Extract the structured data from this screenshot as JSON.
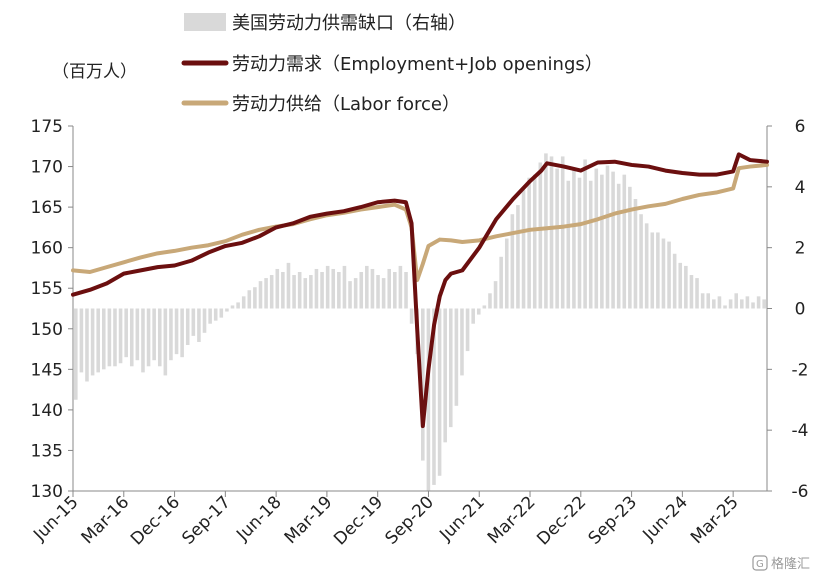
{
  "chart_data": {
    "type": "line",
    "unit_label": "（百万人）",
    "x_tick_labels": [
      "Jun-15",
      "Mar-16",
      "Dec-16",
      "Sep-17",
      "Jun-18",
      "Mar-19",
      "Dec-19",
      "Sep-20",
      "Jun-21",
      "Mar-22",
      "Dec-22",
      "Sep-23",
      "Jun-24",
      "Mar-25"
    ],
    "y_left": {
      "min": 130,
      "max": 175,
      "ticks": [
        "130",
        "135",
        "140",
        "145",
        "150",
        "155",
        "160",
        "165",
        "170",
        "175"
      ]
    },
    "y_right": {
      "min": -6,
      "max": 6,
      "ticks": [
        "-6",
        "-4",
        "-2",
        "0",
        "2",
        "4",
        "6"
      ]
    },
    "x_range": [
      0,
      123
    ],
    "legend": [
      {
        "name": "美国劳动力供需缺口（右轴）",
        "kind": "bar",
        "color": "#d9d9d9"
      },
      {
        "name": "劳动力需求（Employment+Job openings）",
        "kind": "line",
        "color": "#6b0f0f"
      },
      {
        "name": "劳动力供给（Labor force）",
        "kind": "line",
        "color": "#c8a878"
      }
    ],
    "series": [
      {
        "name": "劳动力需求（Employment+Job openings）",
        "axis": "left",
        "points": [
          [
            0,
            154.2
          ],
          [
            3,
            154.8
          ],
          [
            6,
            155.6
          ],
          [
            9,
            156.8
          ],
          [
            12,
            157.2
          ],
          [
            15,
            157.6
          ],
          [
            18,
            157.8
          ],
          [
            21,
            158.4
          ],
          [
            24,
            159.4
          ],
          [
            27,
            160.2
          ],
          [
            30,
            160.6
          ],
          [
            33,
            161.4
          ],
          [
            36,
            162.5
          ],
          [
            39,
            163.0
          ],
          [
            42,
            163.8
          ],
          [
            45,
            164.2
          ],
          [
            48,
            164.5
          ],
          [
            51,
            165.0
          ],
          [
            54,
            165.6
          ],
          [
            57,
            165.8
          ],
          [
            59,
            165.6
          ],
          [
            60,
            163.0
          ],
          [
            61,
            150.0
          ],
          [
            62,
            138.0
          ],
          [
            63,
            145.0
          ],
          [
            64,
            150.5
          ],
          [
            65,
            154.0
          ],
          [
            66,
            156.0
          ],
          [
            67,
            156.8
          ],
          [
            69,
            157.2
          ],
          [
            72,
            160.0
          ],
          [
            75,
            163.5
          ],
          [
            78,
            166.0
          ],
          [
            81,
            168.2
          ],
          [
            83,
            169.5
          ],
          [
            84,
            170.4
          ],
          [
            87,
            170.0
          ],
          [
            90,
            169.5
          ],
          [
            93,
            170.5
          ],
          [
            96,
            170.6
          ],
          [
            99,
            170.2
          ],
          [
            102,
            170.0
          ],
          [
            105,
            169.5
          ],
          [
            108,
            169.2
          ],
          [
            111,
            169.0
          ],
          [
            114,
            169.0
          ],
          [
            117,
            169.4
          ],
          [
            118,
            171.5
          ],
          [
            120,
            170.8
          ],
          [
            123,
            170.6
          ]
        ]
      },
      {
        "name": "劳动力供给（Labor force）",
        "axis": "left",
        "points": [
          [
            0,
            157.2
          ],
          [
            3,
            157.0
          ],
          [
            6,
            157.6
          ],
          [
            9,
            158.2
          ],
          [
            12,
            158.8
          ],
          [
            15,
            159.3
          ],
          [
            18,
            159.6
          ],
          [
            21,
            160.0
          ],
          [
            24,
            160.3
          ],
          [
            27,
            160.8
          ],
          [
            30,
            161.6
          ],
          [
            33,
            162.2
          ],
          [
            36,
            162.6
          ],
          [
            39,
            162.9
          ],
          [
            42,
            163.5
          ],
          [
            45,
            164.0
          ],
          [
            48,
            164.3
          ],
          [
            51,
            164.7
          ],
          [
            54,
            165.0
          ],
          [
            57,
            165.3
          ],
          [
            59,
            164.7
          ],
          [
            60,
            162.5
          ],
          [
            61,
            156.0
          ],
          [
            62,
            158.0
          ],
          [
            63,
            160.2
          ],
          [
            65,
            161.0
          ],
          [
            67,
            160.9
          ],
          [
            69,
            160.7
          ],
          [
            72,
            160.9
          ],
          [
            75,
            161.4
          ],
          [
            78,
            161.8
          ],
          [
            81,
            162.2
          ],
          [
            84,
            162.4
          ],
          [
            87,
            162.6
          ],
          [
            90,
            162.9
          ],
          [
            93,
            163.5
          ],
          [
            96,
            164.2
          ],
          [
            99,
            164.7
          ],
          [
            102,
            165.1
          ],
          [
            105,
            165.4
          ],
          [
            108,
            166.0
          ],
          [
            111,
            166.5
          ],
          [
            114,
            166.8
          ],
          [
            117,
            167.3
          ],
          [
            118,
            169.8
          ],
          [
            120,
            170.0
          ],
          [
            123,
            170.2
          ]
        ]
      },
      {
        "name": "美国劳动力供需缺口（右轴）",
        "axis": "right",
        "kind": "bar",
        "values": [
          -3.0,
          -2.1,
          -2.4,
          -2.2,
          -2.1,
          -2.0,
          -1.9,
          -1.9,
          -1.8,
          -1.6,
          -1.9,
          -1.7,
          -2.1,
          -1.9,
          -1.7,
          -1.9,
          -2.2,
          -1.7,
          -1.5,
          -1.6,
          -1.2,
          -0.9,
          -1.1,
          -0.8,
          -0.5,
          -0.4,
          -0.3,
          -0.1,
          0.1,
          0.2,
          0.4,
          0.6,
          0.7,
          0.9,
          1.0,
          1.1,
          1.3,
          1.2,
          1.5,
          1.1,
          1.2,
          1.0,
          1.1,
          1.3,
          1.2,
          1.4,
          1.3,
          1.2,
          1.4,
          0.9,
          1.0,
          1.2,
          1.4,
          1.3,
          1.1,
          1.0,
          1.3,
          1.2,
          1.4,
          1.2,
          -0.5,
          -1.5,
          -5.0,
          -6.0,
          -5.8,
          -5.5,
          -4.4,
          -3.9,
          -3.2,
          -2.2,
          -1.4,
          -0.5,
          -0.2,
          0.1,
          0.5,
          0.9,
          1.7,
          2.3,
          3.1,
          3.4,
          3.9,
          4.3,
          4.4,
          4.8,
          5.1,
          5.0,
          4.6,
          5.0,
          4.2,
          4.6,
          4.3,
          4.9,
          4.2,
          4.6,
          4.4,
          4.7,
          4.5,
          4.1,
          4.4,
          4.0,
          3.6,
          3.1,
          2.8,
          2.5,
          2.5,
          2.3,
          2.2,
          1.8,
          1.5,
          1.4,
          1.1,
          1.0,
          0.5,
          0.5,
          0.3,
          0.4,
          0.1,
          0.3,
          0.5,
          0.3,
          0.4,
          0.2,
          0.4,
          0.3
        ]
      }
    ]
  },
  "watermark": "格隆汇"
}
